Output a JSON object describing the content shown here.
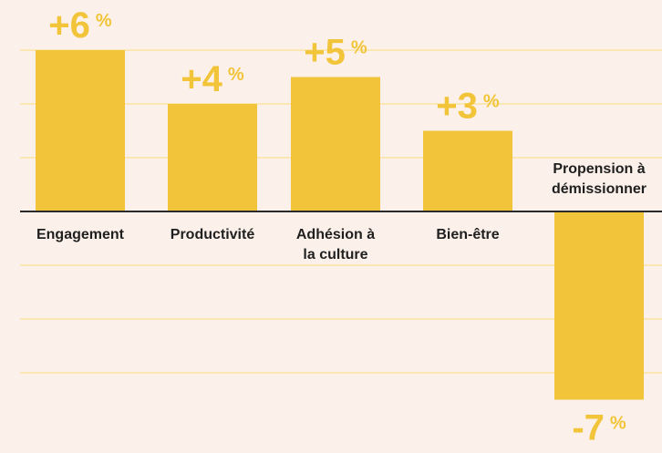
{
  "chart_data": {
    "type": "bar",
    "categories": [
      [
        "Engagement"
      ],
      [
        "Productivité"
      ],
      [
        "Adhésion à",
        "la culture"
      ],
      [
        "Bien-être"
      ],
      [
        "Propension à",
        "démissionner"
      ]
    ],
    "values": [
      6,
      4,
      5,
      3,
      -7
    ],
    "value_labels": [
      "+6",
      "+4",
      "+5",
      "+3",
      "-7"
    ],
    "unit": "%",
    "title": "",
    "xlabel": "",
    "ylabel": "",
    "ylim": [
      -8,
      7
    ],
    "grid": true,
    "gridlines": [
      -6,
      -4,
      -2,
      2,
      4,
      6
    ],
    "colors": {
      "background": "#fcf1ea",
      "bar": "#f2c43a",
      "grid": "#fbe7b3",
      "zero_line": "#2a2a2a",
      "label_text": "#1f1f1f"
    }
  }
}
